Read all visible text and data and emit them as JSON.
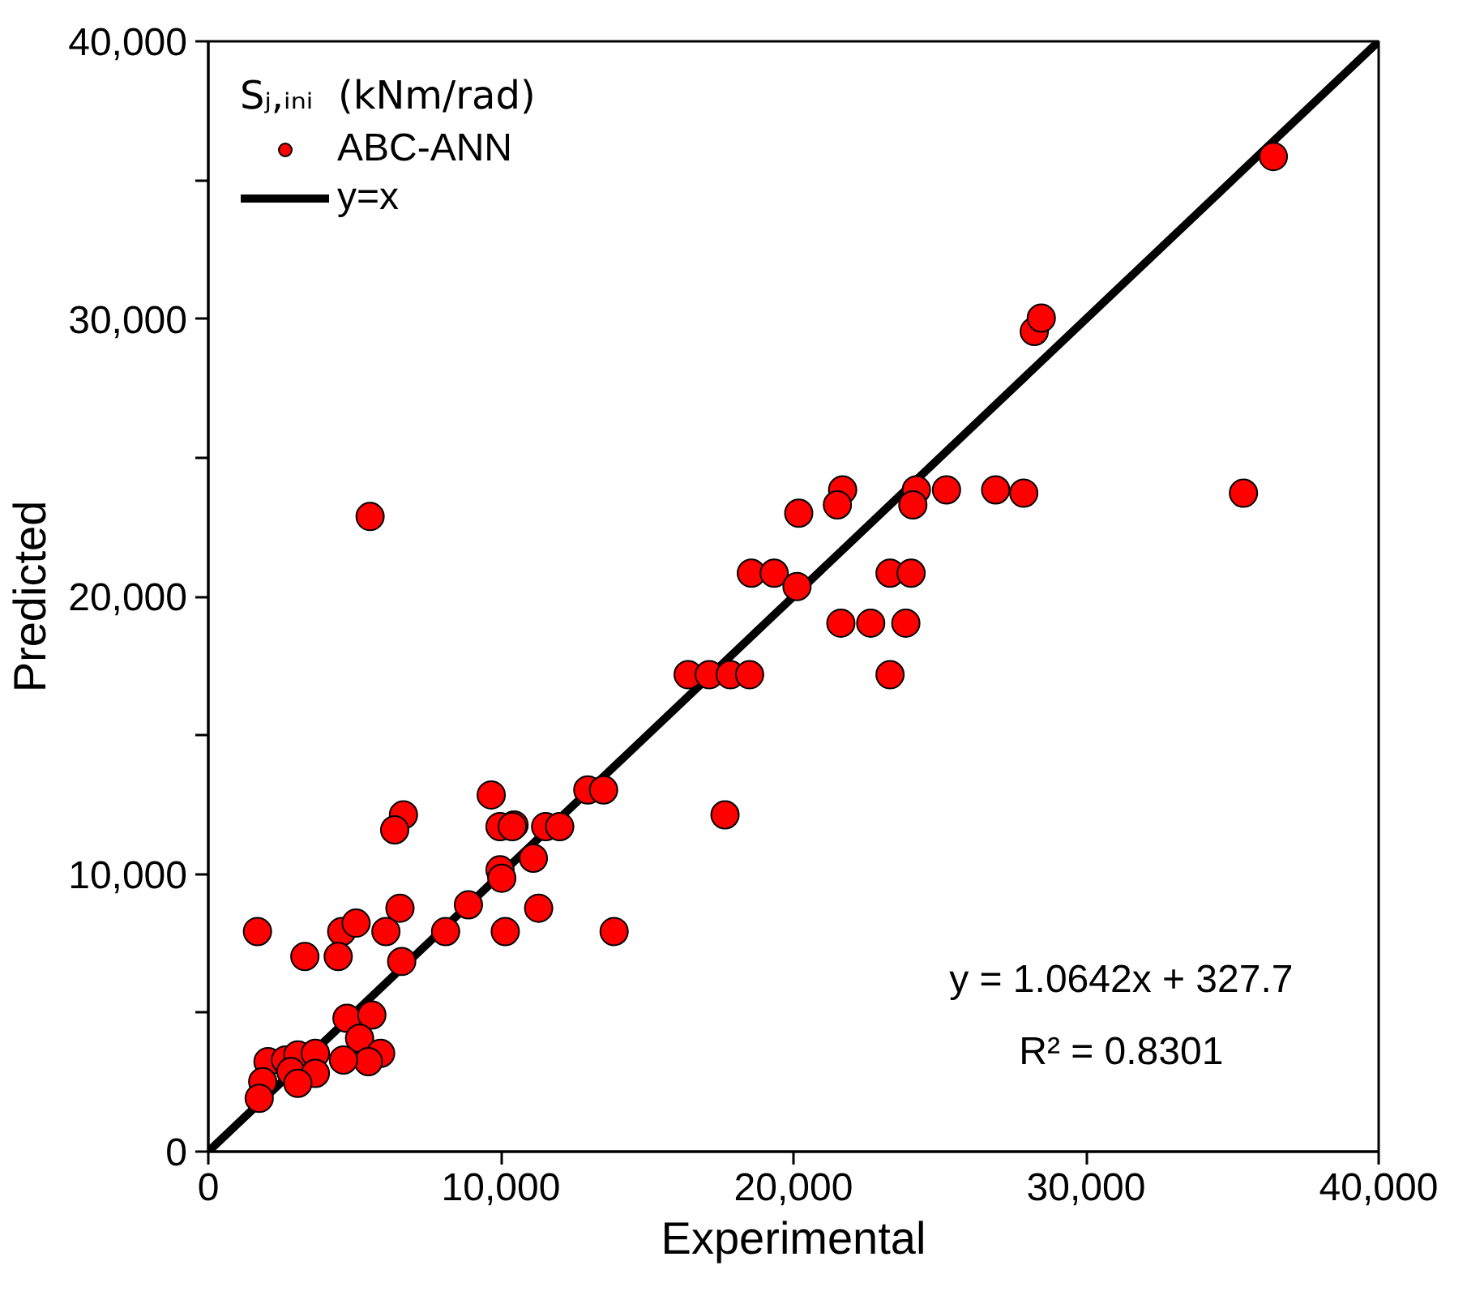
{
  "chart_data": {
    "type": "scatter",
    "xlabel": "Experimental",
    "ylabel": "Predicted",
    "legend_title": "Sⱼ,ᵢₙᵢ  (kNm/rad)",
    "xlim": [
      0,
      40000
    ],
    "ylim": [
      0,
      40000
    ],
    "xticks": [
      {
        "value": 0,
        "label": "0"
      },
      {
        "value": 10000,
        "label": "10,000"
      },
      {
        "value": 20000,
        "label": "20,000"
      },
      {
        "value": 30000,
        "label": "30,000"
      },
      {
        "value": 40000,
        "label": "40,000"
      }
    ],
    "yticks": [
      {
        "value": 0,
        "label": "0"
      },
      {
        "value": 5000,
        "label": null
      },
      {
        "value": 10000,
        "label": "10,000"
      },
      {
        "value": 15000,
        "label": null
      },
      {
        "value": 20000,
        "label": "20,000"
      },
      {
        "value": 25000,
        "label": null
      },
      {
        "value": 30000,
        "label": "30,000"
      },
      {
        "value": 35000,
        "label": null
      },
      {
        "value": 40000,
        "label": "40,000"
      }
    ],
    "grid": false,
    "legend": "top left",
    "series": [
      {
        "name": "ABC-ANN",
        "color": "#ff0000",
        "marker": "circle",
        "x": [
          36400,
          28230,
          28470,
          21680,
          21500,
          20180,
          24200,
          24080,
          25230,
          26910,
          27870,
          35380,
          18560,
          19340,
          20120,
          23300,
          24020,
          21620,
          22640,
          23840,
          16400,
          17120,
          17840,
          18500,
          23300,
          12970,
          13510,
          17660,
          10450,
          11530,
          12010,
          11110,
          9670,
          6670,
          6370,
          9970,
          10390,
          9970,
          10030,
          8890,
          11290,
          6550,
          1680,
          4560,
          5050,
          6070,
          8110,
          10150,
          13870,
          3300,
          4440,
          6610,
          4740,
          5590,
          5170,
          5890,
          5470,
          4620,
          2040,
          2640,
          3060,
          3660,
          2820,
          3660,
          3060,
          1860,
          1740,
          5530
        ],
        "values": [
          35850,
          29550,
          30030,
          23840,
          23300,
          23000,
          23840,
          23300,
          23840,
          23840,
          23720,
          23720,
          20840,
          20840,
          20360,
          20840,
          20840,
          19040,
          19040,
          19040,
          17180,
          17180,
          17180,
          17180,
          17180,
          13030,
          13030,
          12130,
          11770,
          11710,
          11710,
          10570,
          12850,
          12130,
          11590,
          11710,
          11710,
          10150,
          9850,
          8890,
          8770,
          8770,
          7930,
          7930,
          8230,
          7930,
          7930,
          7930,
          7930,
          7030,
          7030,
          6850,
          4800,
          4920,
          4080,
          3540,
          3240,
          3300,
          3240,
          3300,
          3480,
          3540,
          2880,
          2820,
          2460,
          2520,
          1920,
          22880
        ]
      },
      {
        "name": "y=x",
        "color": "#000000",
        "type": "line",
        "line_style": "solid",
        "x": [
          0,
          40000
        ],
        "values": [
          0,
          40000
        ]
      }
    ],
    "annotations": [
      "y = 1.0642x + 327.7",
      "R² = 0.8301"
    ]
  }
}
